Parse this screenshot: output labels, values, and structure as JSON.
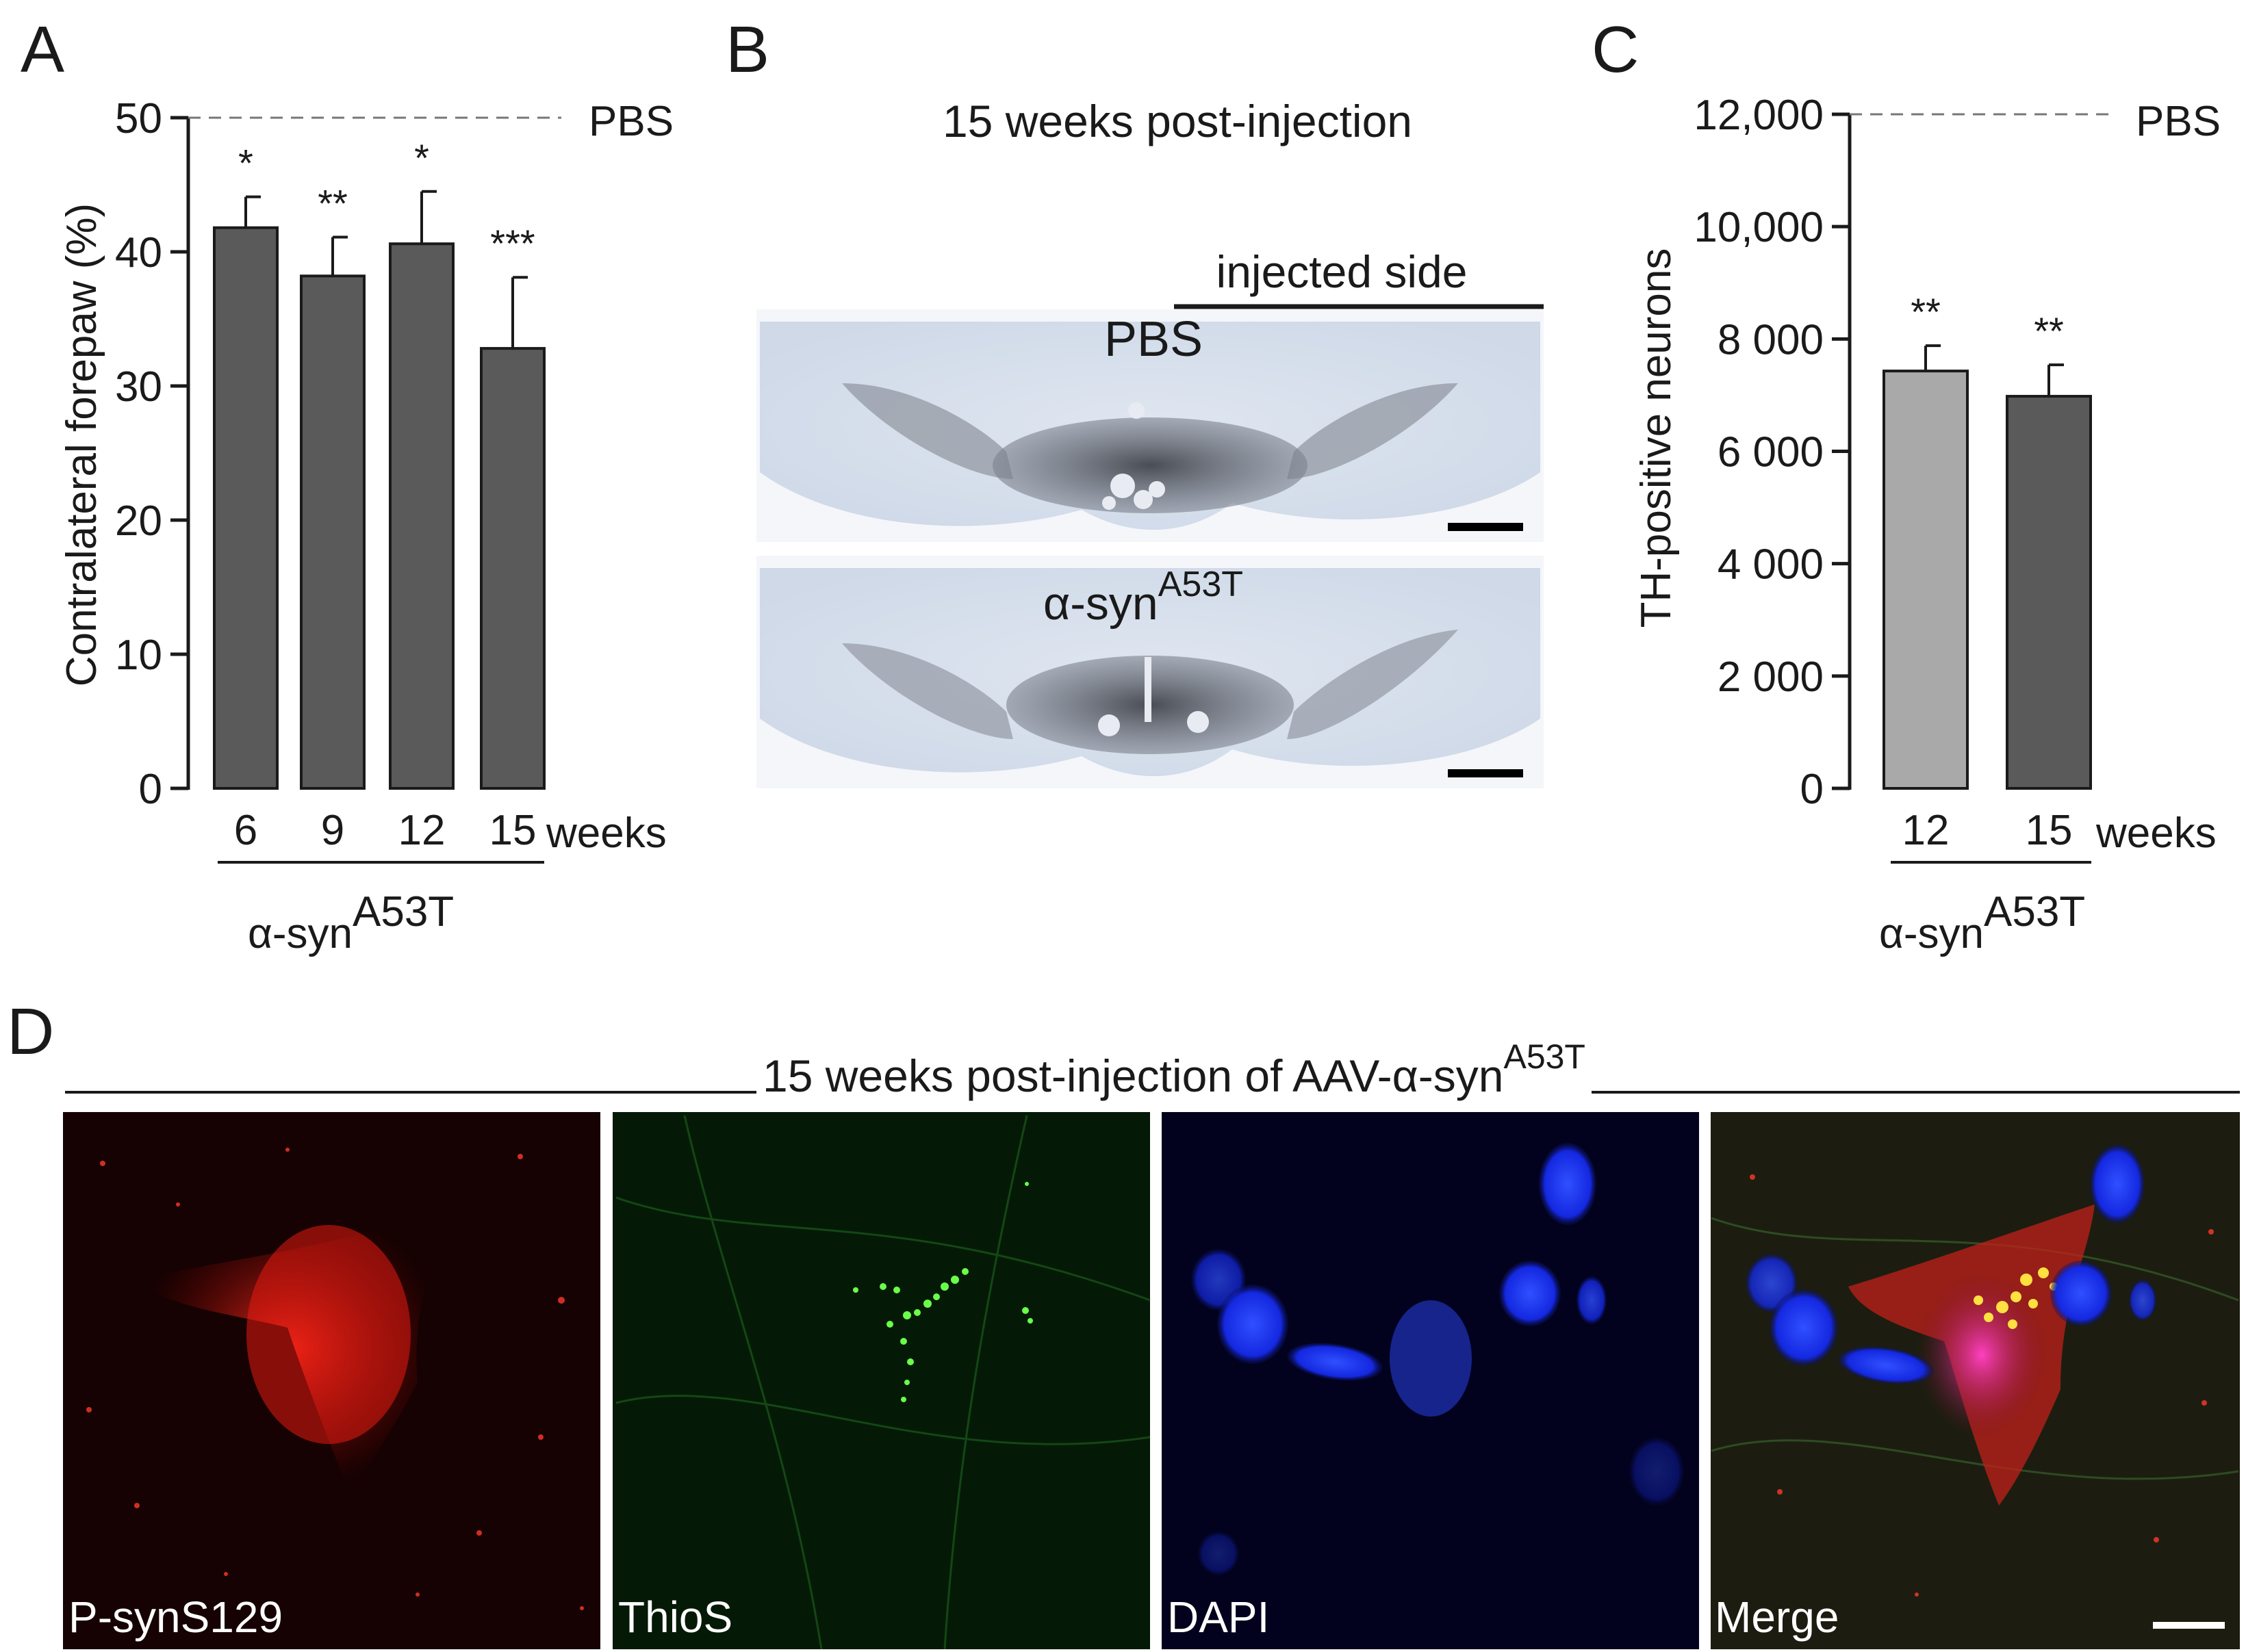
{
  "panels": {
    "A": {
      "letter": "A",
      "reference": {
        "label": "PBS",
        "value": 50
      },
      "significance": [
        "*",
        "**",
        "*",
        "***"
      ],
      "x_unit": "weeks",
      "group_base": "α-syn",
      "group_sup": "A53T"
    },
    "B": {
      "letter": "B",
      "title": "15 weeks post-injection",
      "side_label": "injected side",
      "top_label": "PBS",
      "bottom_label_base": "α-syn",
      "bottom_label_sup": "A53T"
    },
    "C": {
      "letter": "C",
      "reference": {
        "label": "PBS",
        "value": 12000
      },
      "significance": [
        "**",
        "**"
      ],
      "x_unit": "weeks",
      "group_base": "α-syn",
      "group_sup": "A53T"
    },
    "D": {
      "letter": "D",
      "title_base": "15 weeks post-injection of AAV-α-syn",
      "title_sup": "A53T",
      "images": [
        {
          "label": "P-synS129",
          "channel": "red"
        },
        {
          "label": "ThioS",
          "channel": "green"
        },
        {
          "label": "DAPI",
          "channel": "blue"
        },
        {
          "label": "Merge",
          "channel": "merge"
        }
      ]
    }
  },
  "chart_data": [
    {
      "panel": "A",
      "type": "bar",
      "ylabel": "Contralateral forepaw (%)",
      "categories": [
        "6",
        "9",
        "12",
        "15"
      ],
      "values": [
        41.8,
        38.2,
        40.6,
        32.8
      ],
      "errors": [
        2.3,
        2.9,
        3.9,
        5.3
      ],
      "ylim": [
        0,
        50
      ],
      "yticks": [
        0,
        10,
        20,
        30,
        40,
        50
      ],
      "bar_color": "#5a5a5a"
    },
    {
      "panel": "C",
      "type": "bar",
      "ylabel": "TH-positive neurons",
      "categories": [
        "12",
        "15"
      ],
      "values": [
        7430,
        6980
      ],
      "errors": [
        450,
        560
      ],
      "ylim": [
        0,
        12000
      ],
      "yticks": [
        0,
        2000,
        4000,
        6000,
        8000,
        10000,
        12000
      ],
      "ytick_labels": [
        "0",
        "2 000",
        "4 000",
        "6 000",
        "8 000",
        "10,000",
        "12,000"
      ],
      "bar_colors": [
        "#a9a9a9",
        "#5a5a5a"
      ]
    }
  ]
}
